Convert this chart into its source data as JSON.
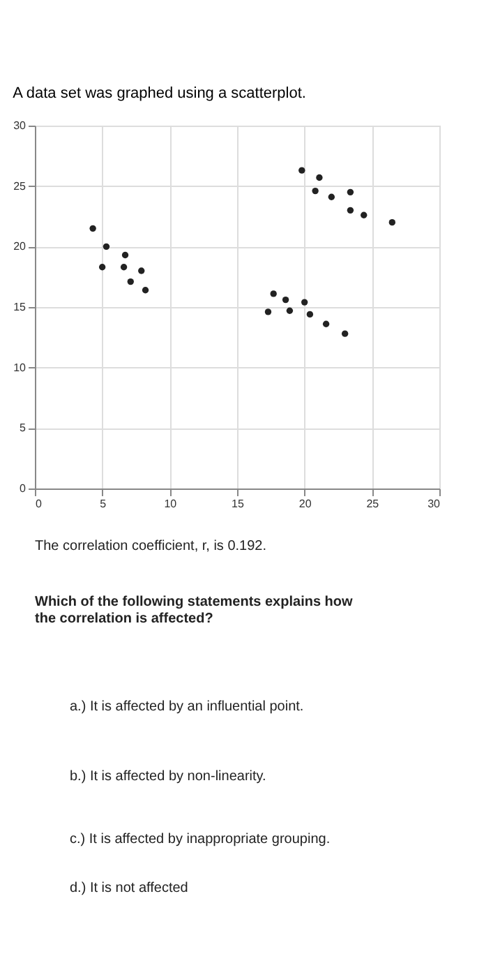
{
  "chart_data": {
    "type": "scatter",
    "title": "A data set was graphed using a scatterplot.",
    "x": [
      4.3,
      5.3,
      5.0,
      6.7,
      6.6,
      7.9,
      7.1,
      8.2,
      17.7,
      18.6,
      17.3,
      18.9,
      20.0,
      20.4,
      21.6,
      23.0,
      19.8,
      21.1,
      20.8,
      22.0,
      23.4,
      23.4,
      24.4,
      26.5
    ],
    "values": [
      21.5,
      20.0,
      18.3,
      19.3,
      18.3,
      18.0,
      17.1,
      16.4,
      16.1,
      15.6,
      14.6,
      14.7,
      15.4,
      14.4,
      13.6,
      12.8,
      26.3,
      25.7,
      24.6,
      24.1,
      24.5,
      23.0,
      22.6,
      22.0
    ],
    "color": "#222222",
    "marker": "circle",
    "xlim": [
      0,
      30
    ],
    "ylim": [
      0,
      30
    ],
    "xticks": [
      0,
      5,
      10,
      15,
      20,
      25,
      30
    ],
    "yticks": [
      0,
      5,
      10,
      15,
      20,
      25,
      30
    ],
    "grid": true,
    "annotations": [
      "The correlation coefficient, r, is 0.192.",
      "Which of the following statements explains how the correlation is affected?",
      "a.) It is affected by an influential point.",
      "b.) It is affected by non-linearity.",
      "c.) It is affected by inappropriate grouping.",
      "d.) It is not affected"
    ]
  }
}
